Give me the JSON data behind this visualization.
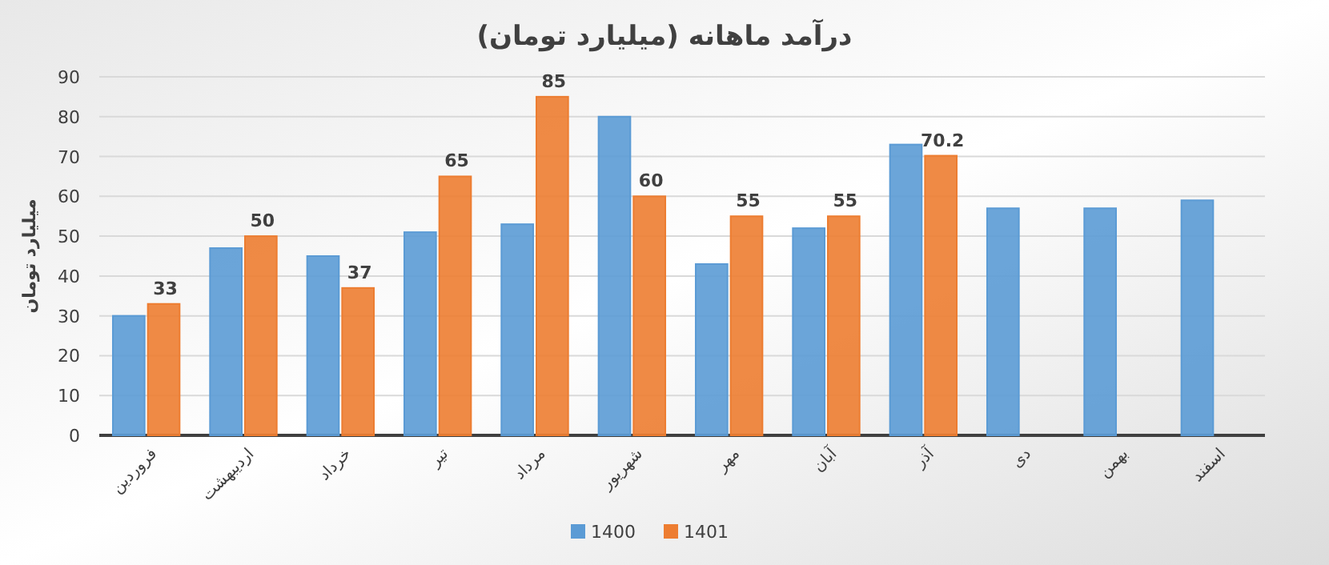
{
  "chart_data": {
    "type": "bar",
    "title": "درآمد ماهانه (میلیارد تومان)",
    "ylabel": "میلیارد تومان",
    "categories": [
      "فروردین",
      "اردیبهشت",
      "خرداد",
      "تیر",
      "مرداد",
      "شهریور",
      "مهر",
      "آبان",
      "آذر",
      "دی",
      "بهمن",
      "اسفند"
    ],
    "series": [
      {
        "name": "1400",
        "color": "#5b9bd5",
        "values": [
          30,
          47,
          45,
          51,
          53,
          80,
          43,
          52,
          73,
          57,
          57,
          59
        ]
      },
      {
        "name": "1401",
        "color": "#ed7d31",
        "values": [
          33,
          50,
          37,
          65,
          85,
          60,
          55,
          55,
          70.2,
          null,
          null,
          null
        ],
        "value_labels": [
          "33",
          "50",
          "37",
          "65",
          "85",
          "60",
          "55",
          "55",
          "70.2",
          null,
          null,
          null
        ]
      }
    ],
    "ylim": [
      0,
      90
    ],
    "yticks": [
      0,
      10,
      20,
      30,
      40,
      50,
      60,
      70,
      80,
      90
    ],
    "grid": "y",
    "legend": "bottom"
  }
}
